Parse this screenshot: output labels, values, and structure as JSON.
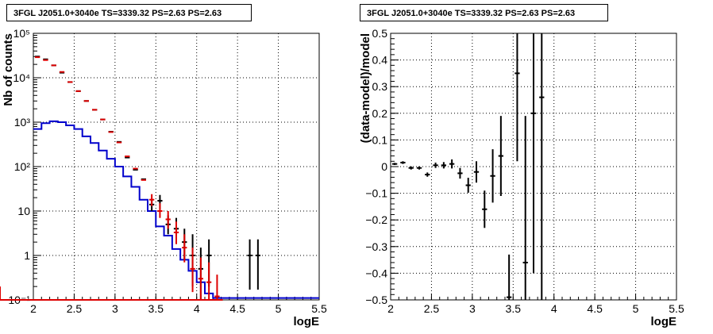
{
  "chart_data": [
    {
      "type": "line",
      "title": "3FGL J2051.0+3040e TS=3339.32 PS=2.63 PS=2.63",
      "xlabel": "logE",
      "ylabel": "Nb of counts",
      "xlim": [
        2,
        5.5
      ],
      "ylim": [
        0.1,
        100000
      ],
      "yscale": "log",
      "grid": true,
      "x_ticks": [
        "2",
        "2.5",
        "3",
        "3.5",
        "4",
        "4.5",
        "5",
        "5.5"
      ],
      "y_ticks": [
        "10⁻¹",
        "1",
        "10",
        "10²",
        "10³",
        "10⁴",
        "10⁵"
      ],
      "series": [
        {
          "color": "#000000",
          "bins": [
            2.0,
            2.1,
            2.2,
            2.3,
            2.4,
            2.5,
            2.6,
            2.7,
            2.8,
            2.9,
            3.0,
            3.1,
            3.2,
            3.3,
            3.4,
            3.5,
            3.6,
            3.7,
            3.8,
            3.9,
            4.0,
            4.1,
            4.2,
            4.3,
            4.4,
            4.5,
            4.6,
            4.7,
            4.8
          ],
          "values": [
            30000,
            26000,
            19000,
            13000,
            8000,
            5000,
            3000,
            1900,
            1150,
            610,
            360,
            160,
            85,
            52,
            14,
            17,
            5,
            4,
            2,
            1,
            0.5,
            1,
            0,
            0,
            0,
            0,
            1,
            1
          ],
          "err_low": [
            0,
            0,
            0,
            0,
            0,
            0,
            0,
            0,
            0,
            0,
            0,
            0,
            0,
            0,
            4,
            6,
            2,
            2,
            1.2,
            0.8,
            0.4,
            0.8,
            0,
            0,
            0,
            0,
            0.83,
            0.83
          ],
          "err_high": [
            0,
            0,
            0,
            0,
            0,
            0,
            0,
            0,
            0,
            0,
            0,
            0,
            0,
            0,
            5,
            6,
            3,
            3,
            2,
            2,
            1,
            1.3,
            0,
            0,
            0,
            0,
            1.3,
            1.3
          ]
        },
        {
          "color": "#0000cc",
          "step": true,
          "bins": [
            2.0,
            2.1,
            2.2,
            2.3,
            2.4,
            2.5,
            2.6,
            2.7,
            2.8,
            2.9,
            3.0,
            3.1,
            3.2,
            3.3,
            3.4,
            3.5,
            3.6,
            3.7,
            3.8,
            3.9,
            4.0,
            4.1,
            4.2,
            5.5
          ],
          "values": [
            700,
            950,
            1050,
            1000,
            850,
            700,
            480,
            340,
            230,
            150,
            100,
            60,
            35,
            18,
            10,
            4.5,
            2.8,
            1.4,
            0.8,
            0.45,
            0.25,
            0.14,
            0.11
          ]
        },
        {
          "color": "#dd0000",
          "bins": [
            2.0,
            2.1,
            2.2,
            2.3,
            2.4,
            2.5,
            2.6,
            2.7,
            2.8,
            2.9,
            3.0,
            3.1,
            3.2,
            3.3,
            3.4,
            3.5,
            3.6,
            3.7,
            3.8,
            3.9,
            4.0,
            4.1,
            4.2,
            4.3
          ],
          "values": [
            29000,
            25000,
            19000,
            13500,
            8000,
            5000,
            3000,
            1900,
            1150,
            600,
            350,
            170,
            90,
            50,
            18,
            10,
            6.5,
            3.3,
            1.5,
            0.5,
            0.3,
            0.25,
            0.12,
            0.1
          ],
          "err_low": [
            0,
            0,
            0,
            0,
            0,
            0,
            0,
            0,
            0,
            0,
            0,
            0,
            0,
            0,
            5,
            3,
            2.5,
            1.5,
            0.8,
            0.35,
            0.2,
            0.15,
            0.05,
            0
          ],
          "err_high": [
            0,
            0,
            0,
            0,
            0,
            0,
            0,
            0,
            0,
            0,
            0,
            0,
            0,
            0,
            6,
            5,
            3.5,
            2.5,
            1.5,
            1.0,
            0.6,
            0.45,
            0.25,
            0.1
          ]
        }
      ]
    },
    {
      "type": "scatter",
      "title": "3FGL J2051.0+3040e TS=3339.32 PS=2.63 PS=2.63",
      "xlabel": "logE",
      "ylabel": "(data-model)/model",
      "xlim": [
        2,
        5.5
      ],
      "ylim": [
        -0.5,
        0.5
      ],
      "grid": true,
      "x_ticks": [
        "2",
        "2.5",
        "3",
        "3.5",
        "4",
        "4.5",
        "5",
        "5.5"
      ],
      "y_ticks": [
        "−0.5",
        "−0.4",
        "−0.3",
        "−0.2",
        "−0.1",
        "0",
        "0.1",
        "0.2",
        "0.3",
        "0.4",
        "0.5"
      ],
      "points": [
        {
          "x": 2.05,
          "y": 0.01,
          "err": 0.004
        },
        {
          "x": 2.15,
          "y": 0.015,
          "err": 0.005
        },
        {
          "x": 2.25,
          "y": -0.005,
          "err": 0.006
        },
        {
          "x": 2.35,
          "y": -0.005,
          "err": 0.006
        },
        {
          "x": 2.45,
          "y": -0.03,
          "err": 0.008
        },
        {
          "x": 2.55,
          "y": 0.005,
          "err": 0.01
        },
        {
          "x": 2.65,
          "y": 0.005,
          "err": 0.012
        },
        {
          "x": 2.75,
          "y": 0.01,
          "err": 0.017
        },
        {
          "x": 2.85,
          "y": -0.025,
          "err": 0.02
        },
        {
          "x": 2.95,
          "y": -0.07,
          "err": 0.028
        },
        {
          "x": 3.05,
          "y": -0.02,
          "err": 0.04
        },
        {
          "x": 3.15,
          "y": -0.16,
          "err": 0.07
        },
        {
          "x": 3.25,
          "y": -0.035,
          "err": 0.1
        },
        {
          "x": 3.35,
          "y": 0.04,
          "err": 0.15
        },
        {
          "x": 3.45,
          "y": -0.49,
          "err": 0.16
        },
        {
          "x": 3.55,
          "y": 0.35,
          "err": 0.33
        },
        {
          "x": 3.65,
          "y": -0.36,
          "err": 0.55
        },
        {
          "x": 3.75,
          "y": 0.2,
          "err": 0.6
        },
        {
          "x": 3.85,
          "y": 0.26,
          "err": 0.9
        }
      ]
    }
  ]
}
